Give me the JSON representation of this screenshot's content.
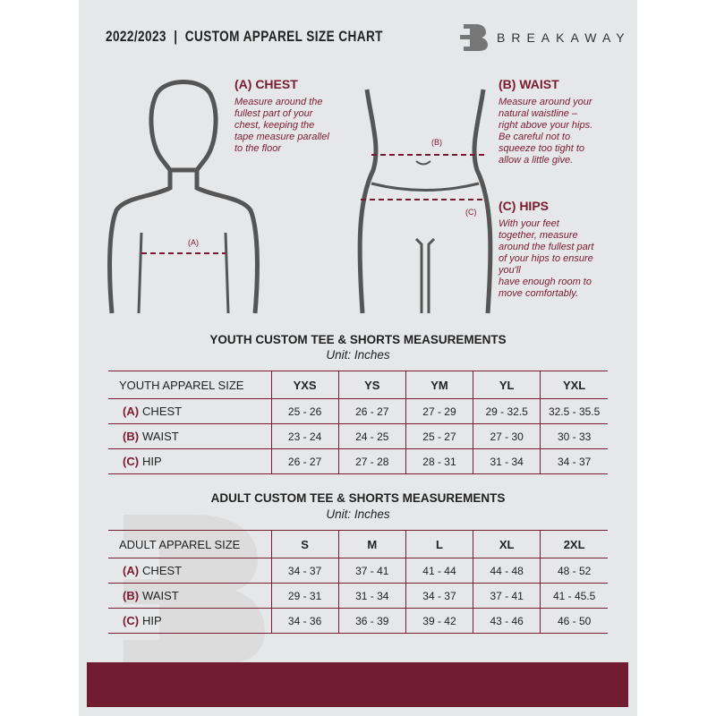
{
  "header": {
    "title": "2022/2023  |  CUSTOM APPAREL SIZE CHART",
    "brand": "BREAKAWAY"
  },
  "measures": {
    "chest": {
      "heading": "(A) CHEST",
      "lines": [
        "Measure around the",
        "fullest part of your",
        "chest, keeping the",
        "tape measure parallel",
        "to the floor"
      ],
      "marker": "(A)"
    },
    "waist": {
      "heading": "(B) WAIST",
      "lines": [
        "Measure around your",
        "natural waistline –",
        "right above your hips.",
        "Be careful not to",
        "squeeze too tight to",
        "allow a little give."
      ],
      "marker": "(B)"
    },
    "hips": {
      "heading": "(C) HIPS",
      "lines": [
        "With your feet",
        "together, measure",
        "around the fullest part",
        "of your hips to ensure",
        "you'll",
        "have enough room to",
        "move comfortably."
      ],
      "marker": "(C)"
    }
  },
  "youth": {
    "title": "YOUTH CUSTOM TEE & SHORTS MEASUREMENTS",
    "unit": "Unit: Inches",
    "size_label": "YOUTH APPAREL SIZE",
    "sizes": [
      "YXS",
      "YS",
      "YM",
      "YL",
      "YXL"
    ],
    "rows": [
      {
        "tag": "(A)",
        "name": "CHEST",
        "values": [
          "25 - 26",
          "26 - 27",
          "27 - 29",
          "29 - 32.5",
          "32.5 - 35.5"
        ]
      },
      {
        "tag": "(B)",
        "name": "WAIST",
        "values": [
          "23 - 24",
          "24 - 25",
          "25 - 27",
          "27 - 30",
          "30 - 33"
        ]
      },
      {
        "tag": "(C)",
        "name": "HIP",
        "values": [
          "26 - 27",
          "27 - 28",
          "28 - 31",
          "31 - 34",
          "34 - 37"
        ]
      }
    ]
  },
  "adult": {
    "title": "ADULT CUSTOM TEE & SHORTS MEASUREMENTS",
    "unit": "Unit: Inches",
    "size_label": "ADULT APPAREL SIZE",
    "sizes": [
      "S",
      "M",
      "L",
      "XL",
      "2XL"
    ],
    "rows": [
      {
        "tag": "(A)",
        "name": "CHEST",
        "values": [
          "34 - 37",
          "37 - 41",
          "41 - 44",
          "44 - 48",
          "48 - 52"
        ]
      },
      {
        "tag": "(B)",
        "name": "WAIST",
        "values": [
          "29 - 31",
          "31 - 34",
          "34 - 37",
          "37 - 41",
          "41 - 45.5"
        ]
      },
      {
        "tag": "(C)",
        "name": "HIP",
        "values": [
          "34 - 36",
          "36 - 39",
          "39 - 42",
          "43 - 46",
          "46 - 50"
        ]
      }
    ]
  },
  "colors": {
    "accent": "#7a1a32",
    "background": "#e6e7e8",
    "footer": "#721c31"
  }
}
